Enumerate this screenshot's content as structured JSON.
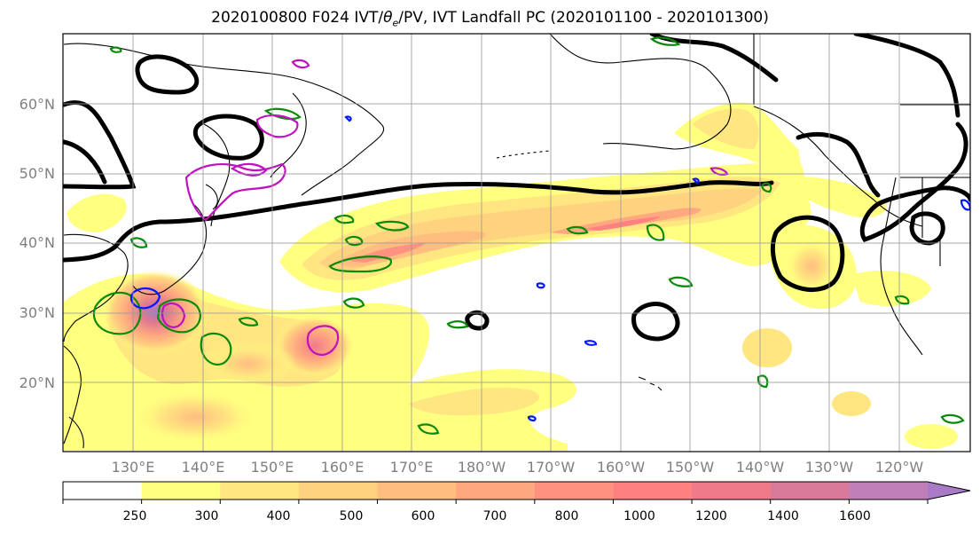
{
  "title": {
    "prefix": "2020100800 F024 IVT/",
    "theta": "θ",
    "theta_sub": "e",
    "suffix": "/PV, IVT Landfall PC (2020101100 - 2020101300)"
  },
  "latitude_labels": [
    "60°N",
    "50°N",
    "40°N",
    "30°N",
    "20°N"
  ],
  "longitude_labels": [
    "130°E",
    "140°E",
    "150°E",
    "160°E",
    "170°E",
    "180°W",
    "170°W",
    "160°W",
    "150°W",
    "140°W",
    "130°W",
    "120°W"
  ],
  "colorbar": {
    "ticks": [
      "250",
      "300",
      "400",
      "500",
      "600",
      "700",
      "800",
      "1000",
      "1200",
      "1400",
      "1600"
    ],
    "colors": [
      "#ffffff",
      "#ffff80",
      "#ffe680",
      "#ffd280",
      "#ffbd80",
      "#ffa880",
      "#ff9180",
      "#ff8080",
      "#f07a8a",
      "#d97a9a",
      "#bf80b8",
      "#a87ac8"
    ],
    "extend": "max"
  },
  "layer_colors": {
    "coastline": "#000000",
    "thetae_contour": "#000000",
    "pv_green": "#0a8a0a",
    "pv_magenta": "#c010c0",
    "pv_blue": "#0018ff",
    "gridline": "#999999"
  }
}
